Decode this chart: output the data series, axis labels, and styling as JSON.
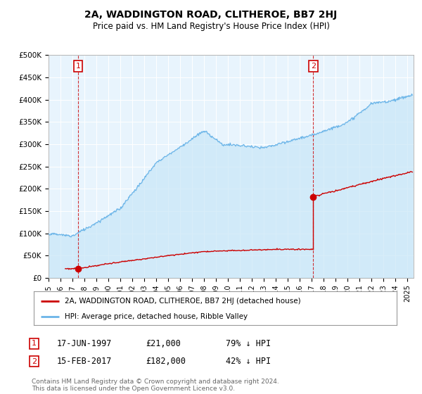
{
  "title": "2A, WADDINGTON ROAD, CLITHEROE, BB7 2HJ",
  "subtitle": "Price paid vs. HM Land Registry's House Price Index (HPI)",
  "ylabel_ticks": [
    "£0",
    "£50K",
    "£100K",
    "£150K",
    "£200K",
    "£250K",
    "£300K",
    "£350K",
    "£400K",
    "£450K",
    "£500K"
  ],
  "ytick_values": [
    0,
    50000,
    100000,
    150000,
    200000,
    250000,
    300000,
    350000,
    400000,
    450000,
    500000
  ],
  "ylim": [
    0,
    500000
  ],
  "xlim_start": 1995.0,
  "xlim_end": 2025.5,
  "transaction1": {
    "date_num": 1997.46,
    "price": 21000,
    "label": "1"
  },
  "transaction2": {
    "date_num": 2017.12,
    "price": 182000,
    "label": "2"
  },
  "hpi_color": "#6ab4e8",
  "hpi_fill_color": "#ddeeff",
  "price_color": "#cc0000",
  "plot_bg_color": "#e8f4fd",
  "legend_label_price": "2A, WADDINGTON ROAD, CLITHEROE, BB7 2HJ (detached house)",
  "legend_label_hpi": "HPI: Average price, detached house, Ribble Valley",
  "annotation1_date": "17-JUN-1997",
  "annotation1_price": "£21,000",
  "annotation1_hpi": "79% ↓ HPI",
  "annotation2_date": "15-FEB-2017",
  "annotation2_price": "£182,000",
  "annotation2_hpi": "42% ↓ HPI",
  "footer": "Contains HM Land Registry data © Crown copyright and database right 2024.\nThis data is licensed under the Open Government Licence v3.0.",
  "box_color": "#cc0000",
  "xtick_years": [
    1995,
    1996,
    1997,
    1998,
    1999,
    2000,
    2001,
    2002,
    2003,
    2004,
    2005,
    2006,
    2007,
    2008,
    2009,
    2010,
    2011,
    2012,
    2013,
    2014,
    2015,
    2016,
    2017,
    2018,
    2019,
    2020,
    2021,
    2022,
    2023,
    2024,
    2025
  ]
}
